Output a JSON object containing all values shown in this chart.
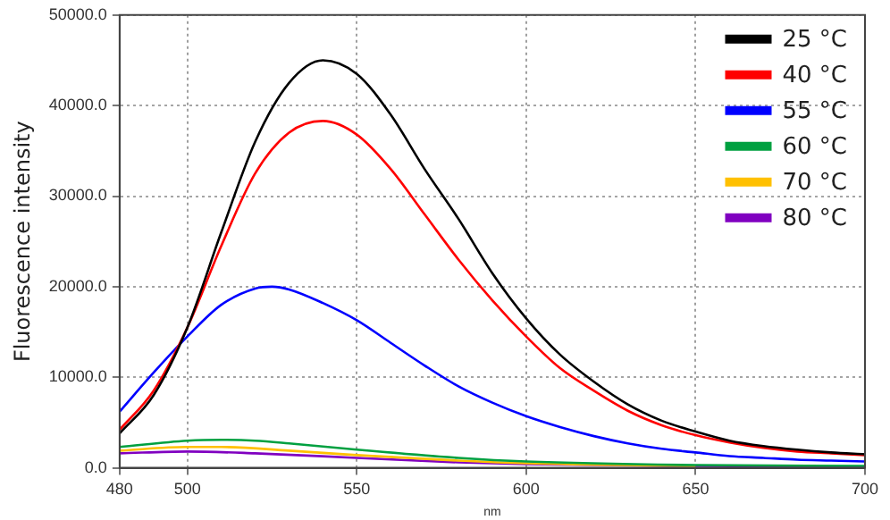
{
  "chart_data": {
    "type": "line",
    "xlabel": "nm",
    "ylabel": "Fluorescence intensity",
    "xlim": [
      480,
      700
    ],
    "xticks": [
      480,
      500,
      550,
      600,
      650,
      700
    ],
    "ylim": [
      0,
      50000
    ],
    "yticks": [
      {
        "value": 0,
        "label": "0.0"
      },
      {
        "value": 10000,
        "label": "10000.0"
      },
      {
        "value": 20000,
        "label": "20000.0"
      },
      {
        "value": 30000,
        "label": "30000.0"
      },
      {
        "value": 40000,
        "label": "40000.0"
      },
      {
        "value": 50000,
        "label": "50000.0"
      }
    ],
    "grid": true,
    "legend": "top right",
    "marker": "none",
    "line_style": "solid",
    "series": [
      {
        "name": "25 °C",
        "color": "#000000",
        "x": [
          480,
          490,
          500,
          510,
          520,
          530,
          540,
          550,
          560,
          570,
          580,
          590,
          600,
          610,
          620,
          630,
          640,
          650,
          660,
          670,
          680,
          690,
          700
        ],
        "values": [
          3800,
          8000,
          15500,
          26000,
          36000,
          42500,
          45000,
          43500,
          39000,
          33000,
          27500,
          21500,
          16500,
          12500,
          9500,
          7000,
          5200,
          4000,
          3000,
          2400,
          2000,
          1700,
          1500
        ]
      },
      {
        "name": "40 °C",
        "color": "#ff0000",
        "x": [
          480,
          490,
          500,
          510,
          520,
          530,
          540,
          550,
          560,
          570,
          580,
          590,
          600,
          610,
          620,
          630,
          640,
          650,
          660,
          670,
          680,
          690,
          700
        ],
        "values": [
          4200,
          8500,
          15500,
          24500,
          32500,
          37000,
          38300,
          36800,
          33000,
          28000,
          23000,
          18500,
          14500,
          11000,
          8500,
          6300,
          4700,
          3600,
          2800,
          2200,
          1800,
          1600,
          1400
        ]
      },
      {
        "name": "55 °C",
        "color": "#0000ff",
        "x": [
          480,
          490,
          500,
          510,
          520,
          525,
          530,
          540,
          550,
          560,
          570,
          580,
          590,
          600,
          610,
          620,
          630,
          640,
          650,
          660,
          670,
          680,
          690,
          700
        ],
        "values": [
          6200,
          10500,
          14500,
          18000,
          19800,
          20000,
          19700,
          18200,
          16300,
          13800,
          11300,
          9000,
          7200,
          5700,
          4500,
          3500,
          2700,
          2100,
          1700,
          1300,
          1100,
          900,
          800,
          700
        ]
      },
      {
        "name": "60 °C",
        "color": "#00a040",
        "x": [
          480,
          500,
          510,
          520,
          530,
          550,
          580,
          600,
          650,
          700
        ],
        "values": [
          2300,
          3000,
          3100,
          3000,
          2700,
          2000,
          1100,
          700,
          300,
          200
        ]
      },
      {
        "name": "70 °C",
        "color": "#ffc000",
        "x": [
          480,
          500,
          510,
          530,
          550,
          580,
          600,
          650
        ],
        "values": [
          1900,
          2300,
          2300,
          1900,
          1400,
          800,
          500,
          200
        ]
      },
      {
        "name": "80 °C",
        "color": "#8000c0",
        "x": [
          480,
          500,
          520,
          550,
          580,
          600,
          650,
          700
        ],
        "values": [
          1600,
          1800,
          1600,
          1100,
          600,
          400,
          200,
          100
        ]
      }
    ]
  }
}
